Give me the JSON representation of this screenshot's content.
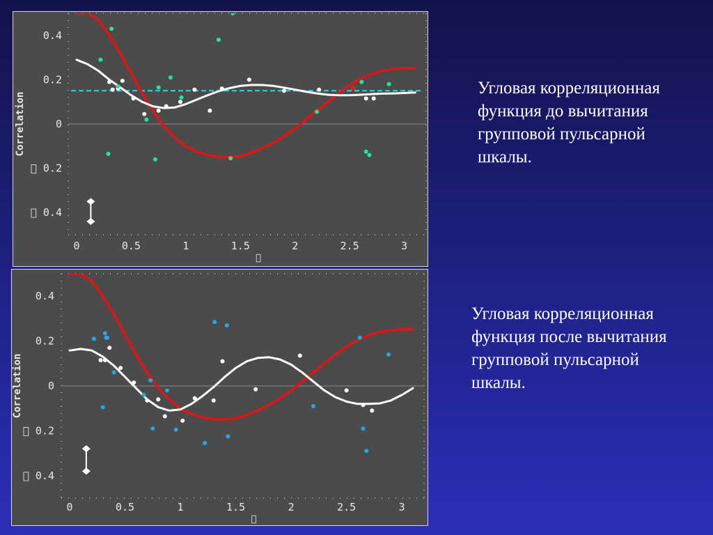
{
  "chart_data": [
    {
      "type": "scatter",
      "ylabel": "Correlation",
      "xlabel": "\u0000",
      "xlim": [
        0,
        3.2
      ],
      "ylim": [
        -0.5,
        0.5
      ],
      "xticks": [
        0,
        0.5,
        1,
        1.5,
        2,
        2.5,
        3
      ],
      "xtick_labels": [
        "0",
        "0.5",
        "1",
        "1.5",
        "2",
        "2.5",
        "3"
      ],
      "yticks": [
        0.4,
        0.2,
        0,
        -0.2,
        -0.4
      ],
      "ytick_labels": [
        "0.4",
        "0.2",
        "0",
        "\u0000 0.2",
        "\u0000 0.4"
      ],
      "reference_line_y": 0.15,
      "error_bar": {
        "x": 0.13,
        "y_low": -0.44,
        "y_high": -0.35
      },
      "colors": {
        "background": "#4b4b4b",
        "red_curve": "#e41414",
        "white_curve": "#ffffff",
        "scatter": "#22e6a0",
        "reference": "#22d8e8"
      },
      "series": [
        {
          "role": "red-curve",
          "x": [
            0,
            0.1,
            0.2,
            0.3,
            0.4,
            0.5,
            0.6,
            0.7,
            0.8,
            0.9,
            1.0,
            1.1,
            1.2,
            1.3,
            1.4,
            1.5,
            1.6,
            1.7,
            1.8,
            1.9,
            2.0,
            2.1,
            2.2,
            2.3,
            2.4,
            2.5,
            2.6,
            2.7,
            2.8,
            2.9,
            3.0,
            3.1
          ],
          "y": [
            0.5,
            0.5,
            0.47,
            0.4,
            0.32,
            0.23,
            0.14,
            0.06,
            -0.01,
            -0.06,
            -0.1,
            -0.125,
            -0.14,
            -0.148,
            -0.15,
            -0.145,
            -0.13,
            -0.11,
            -0.085,
            -0.055,
            -0.02,
            0.02,
            0.06,
            0.1,
            0.14,
            0.175,
            0.205,
            0.225,
            0.24,
            0.248,
            0.252,
            0.253
          ]
        },
        {
          "role": "white-curve",
          "x": [
            0,
            0.1,
            0.2,
            0.3,
            0.4,
            0.5,
            0.6,
            0.7,
            0.8,
            0.9,
            1.0,
            1.1,
            1.2,
            1.3,
            1.4,
            1.5,
            1.6,
            1.7,
            1.8,
            1.9,
            2.0,
            2.1,
            2.2,
            2.3,
            2.4,
            2.5,
            2.6,
            2.7,
            2.8,
            2.9,
            3.0,
            3.1
          ],
          "y": [
            0.29,
            0.27,
            0.24,
            0.2,
            0.165,
            0.13,
            0.1,
            0.08,
            0.072,
            0.075,
            0.09,
            0.11,
            0.13,
            0.148,
            0.162,
            0.172,
            0.176,
            0.176,
            0.172,
            0.164,
            0.155,
            0.146,
            0.138,
            0.132,
            0.13,
            0.13,
            0.132,
            0.135,
            0.137,
            0.138,
            0.14,
            0.142
          ]
        },
        {
          "role": "white-points",
          "x": [
            0.3,
            0.33,
            0.38,
            0.42,
            0.52,
            0.62,
            0.75,
            0.82,
            0.95,
            1.08,
            1.22,
            1.33,
            1.58,
            1.9,
            2.22,
            2.53,
            2.65,
            2.72
          ],
          "y": [
            0.19,
            0.155,
            0.16,
            0.195,
            0.115,
            0.045,
            0.06,
            0.08,
            0.1,
            0.155,
            0.06,
            0.16,
            0.2,
            0.15,
            0.155,
            0.16,
            0.115,
            0.115
          ]
        },
        {
          "role": "green-points",
          "x": [
            0.22,
            0.29,
            0.32,
            0.38,
            0.64,
            0.72,
            0.75,
            0.86,
            0.96,
            1.3,
            1.41,
            1.43,
            2.2,
            2.61,
            2.65,
            2.68,
            2.86
          ],
          "y": [
            0.29,
            -0.135,
            0.43,
            0.17,
            0.02,
            -0.16,
            0.165,
            0.21,
            0.12,
            0.38,
            -0.155,
            0.5,
            0.055,
            0.19,
            -0.125,
            -0.14,
            0.18
          ]
        },
        {
          "role": "red-point",
          "x": [
            2.53
          ],
          "y": [
            0.16
          ]
        }
      ]
    },
    {
      "type": "scatter",
      "ylabel": "Correlation",
      "xlabel": "\u0000",
      "xlim": [
        0,
        3.2
      ],
      "ylim": [
        -0.5,
        0.5
      ],
      "xticks": [
        0,
        0.5,
        1,
        1.5,
        2,
        2.5,
        3
      ],
      "xtick_labels": [
        "0",
        "0.5",
        "1",
        "1.5",
        "2",
        "2.5",
        "3"
      ],
      "yticks": [
        0.4,
        0.2,
        0,
        -0.2,
        -0.4
      ],
      "ytick_labels": [
        "0.4",
        "0.2",
        "0",
        "\u0000 0.2",
        "\u0000 0.4"
      ],
      "error_bar": {
        "x": 0.15,
        "y_low": -0.38,
        "y_high": -0.28
      },
      "colors": {
        "background": "#4b4b4b",
        "red_curve": "#e41414",
        "white_curve": "#ffffff",
        "scatter": "#1ea8f0"
      },
      "series": [
        {
          "role": "red-curve",
          "x": [
            0,
            0.1,
            0.2,
            0.3,
            0.4,
            0.5,
            0.6,
            0.7,
            0.8,
            0.9,
            1.0,
            1.1,
            1.2,
            1.3,
            1.4,
            1.5,
            1.6,
            1.7,
            1.8,
            1.9,
            2.0,
            2.1,
            2.2,
            2.3,
            2.4,
            2.5,
            2.6,
            2.7,
            2.8,
            2.9,
            3.0,
            3.1
          ],
          "y": [
            0.5,
            0.5,
            0.47,
            0.4,
            0.32,
            0.23,
            0.14,
            0.06,
            -0.01,
            -0.06,
            -0.1,
            -0.125,
            -0.14,
            -0.148,
            -0.15,
            -0.145,
            -0.13,
            -0.11,
            -0.085,
            -0.055,
            -0.02,
            0.02,
            0.06,
            0.1,
            0.14,
            0.175,
            0.205,
            0.225,
            0.24,
            0.248,
            0.252,
            0.253
          ]
        },
        {
          "role": "white-curve",
          "x": [
            0,
            0.1,
            0.2,
            0.3,
            0.4,
            0.5,
            0.6,
            0.7,
            0.8,
            0.9,
            1.0,
            1.1,
            1.2,
            1.3,
            1.4,
            1.5,
            1.6,
            1.7,
            1.8,
            1.9,
            2.0,
            2.1,
            2.2,
            2.3,
            2.4,
            2.5,
            2.6,
            2.7,
            2.8,
            2.9,
            3.0,
            3.1
          ],
          "y": [
            0.158,
            0.165,
            0.158,
            0.13,
            0.09,
            0.04,
            -0.01,
            -0.06,
            -0.095,
            -0.11,
            -0.105,
            -0.08,
            -0.045,
            -0.005,
            0.04,
            0.08,
            0.11,
            0.125,
            0.128,
            0.118,
            0.095,
            0.06,
            0.02,
            -0.02,
            -0.05,
            -0.07,
            -0.08,
            -0.08,
            -0.078,
            -0.065,
            -0.04,
            -0.01
          ]
        },
        {
          "role": "white-points",
          "x": [
            0.28,
            0.32,
            0.36,
            0.46,
            0.58,
            0.7,
            0.8,
            0.86,
            1.02,
            1.13,
            1.3,
            1.38,
            1.68,
            2.08,
            2.5,
            2.65,
            2.73
          ],
          "y": [
            0.115,
            0.115,
            0.17,
            0.08,
            0.015,
            -0.065,
            -0.06,
            -0.135,
            -0.155,
            -0.055,
            -0.065,
            0.11,
            -0.015,
            0.135,
            -0.02,
            -0.085,
            -0.11
          ]
        },
        {
          "role": "blue-points",
          "x": [
            0.22,
            0.3,
            0.32,
            0.33,
            0.34,
            0.4,
            0.67,
            0.73,
            0.75,
            0.88,
            0.96,
            1.22,
            1.31,
            1.42,
            1.43,
            2.2,
            2.62,
            2.65,
            2.68,
            2.88
          ],
          "y": [
            0.21,
            -0.095,
            0.235,
            0.215,
            0.215,
            0.06,
            -0.04,
            0.025,
            -0.19,
            -0.02,
            -0.195,
            -0.255,
            0.285,
            0.27,
            -0.225,
            -0.09,
            0.215,
            -0.19,
            -0.29,
            0.14
          ]
        }
      ]
    }
  ],
  "captions": {
    "top": [
      "Угловая корреляционная",
      "функция до вычитания",
      "групповой пульсарной",
      "шкалы."
    ],
    "bottom": [
      "Угловая корреляционная",
      "функция после вычитания",
      "групповой пульсарной",
      "шкалы."
    ]
  }
}
